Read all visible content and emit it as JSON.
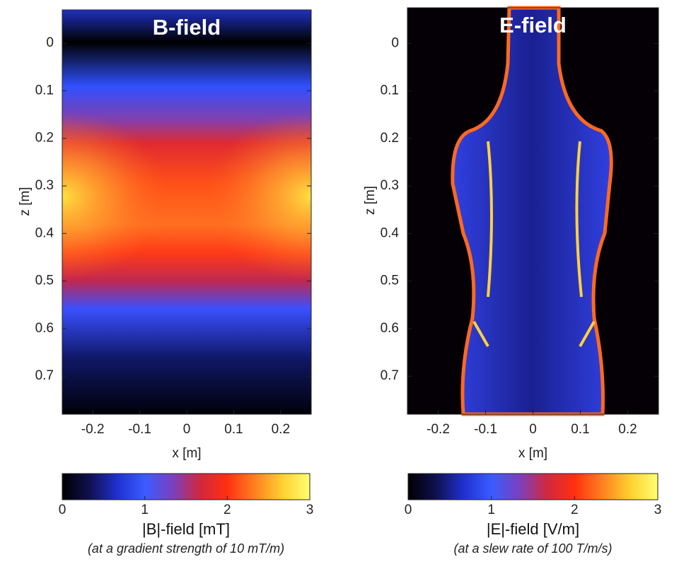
{
  "chart_data": [
    {
      "type": "heatmap",
      "title": "B-field",
      "xlabel": "x [m]",
      "ylabel": "z [m]",
      "xlim": [
        -0.265,
        0.265
      ],
      "ylim": [
        -0.07,
        0.78
      ],
      "xticks": [
        -0.2,
        -0.1,
        0,
        0.1,
        0.2
      ],
      "yticks": [
        0,
        0.1,
        0.2,
        0.3,
        0.4,
        0.5,
        0.6,
        0.7
      ],
      "colormap": [
        "#000000",
        "#101050",
        "#2030d0",
        "#3a5cff",
        "#7a40c0",
        "#d02840",
        "#ff3010",
        "#ff8020",
        "#ffd030",
        "#ffff70"
      ],
      "colorbar": {
        "lim": [
          0,
          3
        ],
        "ticks": [
          0,
          1,
          2,
          3
        ],
        "label": "|B|-field [mT]",
        "note": "(at a gradient strength of 10 mT/m)"
      }
    },
    {
      "type": "heatmap",
      "title": "E-field",
      "xlabel": "x [m]",
      "ylabel": "z [m]",
      "xlim": [
        -0.265,
        0.265
      ],
      "ylim": [
        -0.075,
        0.78
      ],
      "xticks": [
        -0.2,
        -0.1,
        0,
        0.1,
        0.2
      ],
      "yticks": [
        0,
        0.1,
        0.2,
        0.3,
        0.4,
        0.5,
        0.6,
        0.7
      ],
      "colormap": [
        "#000000",
        "#101050",
        "#2030d0",
        "#3a5cff",
        "#7a40c0",
        "#d02840",
        "#ff3010",
        "#ff8020",
        "#ffd030",
        "#ffff70"
      ],
      "colorbar": {
        "lim": [
          0,
          3
        ],
        "ticks": [
          0,
          1,
          2,
          3
        ],
        "label": "|E|-field [V/m]",
        "note": "(at a slew rate of 100 T/m/s)"
      }
    }
  ]
}
